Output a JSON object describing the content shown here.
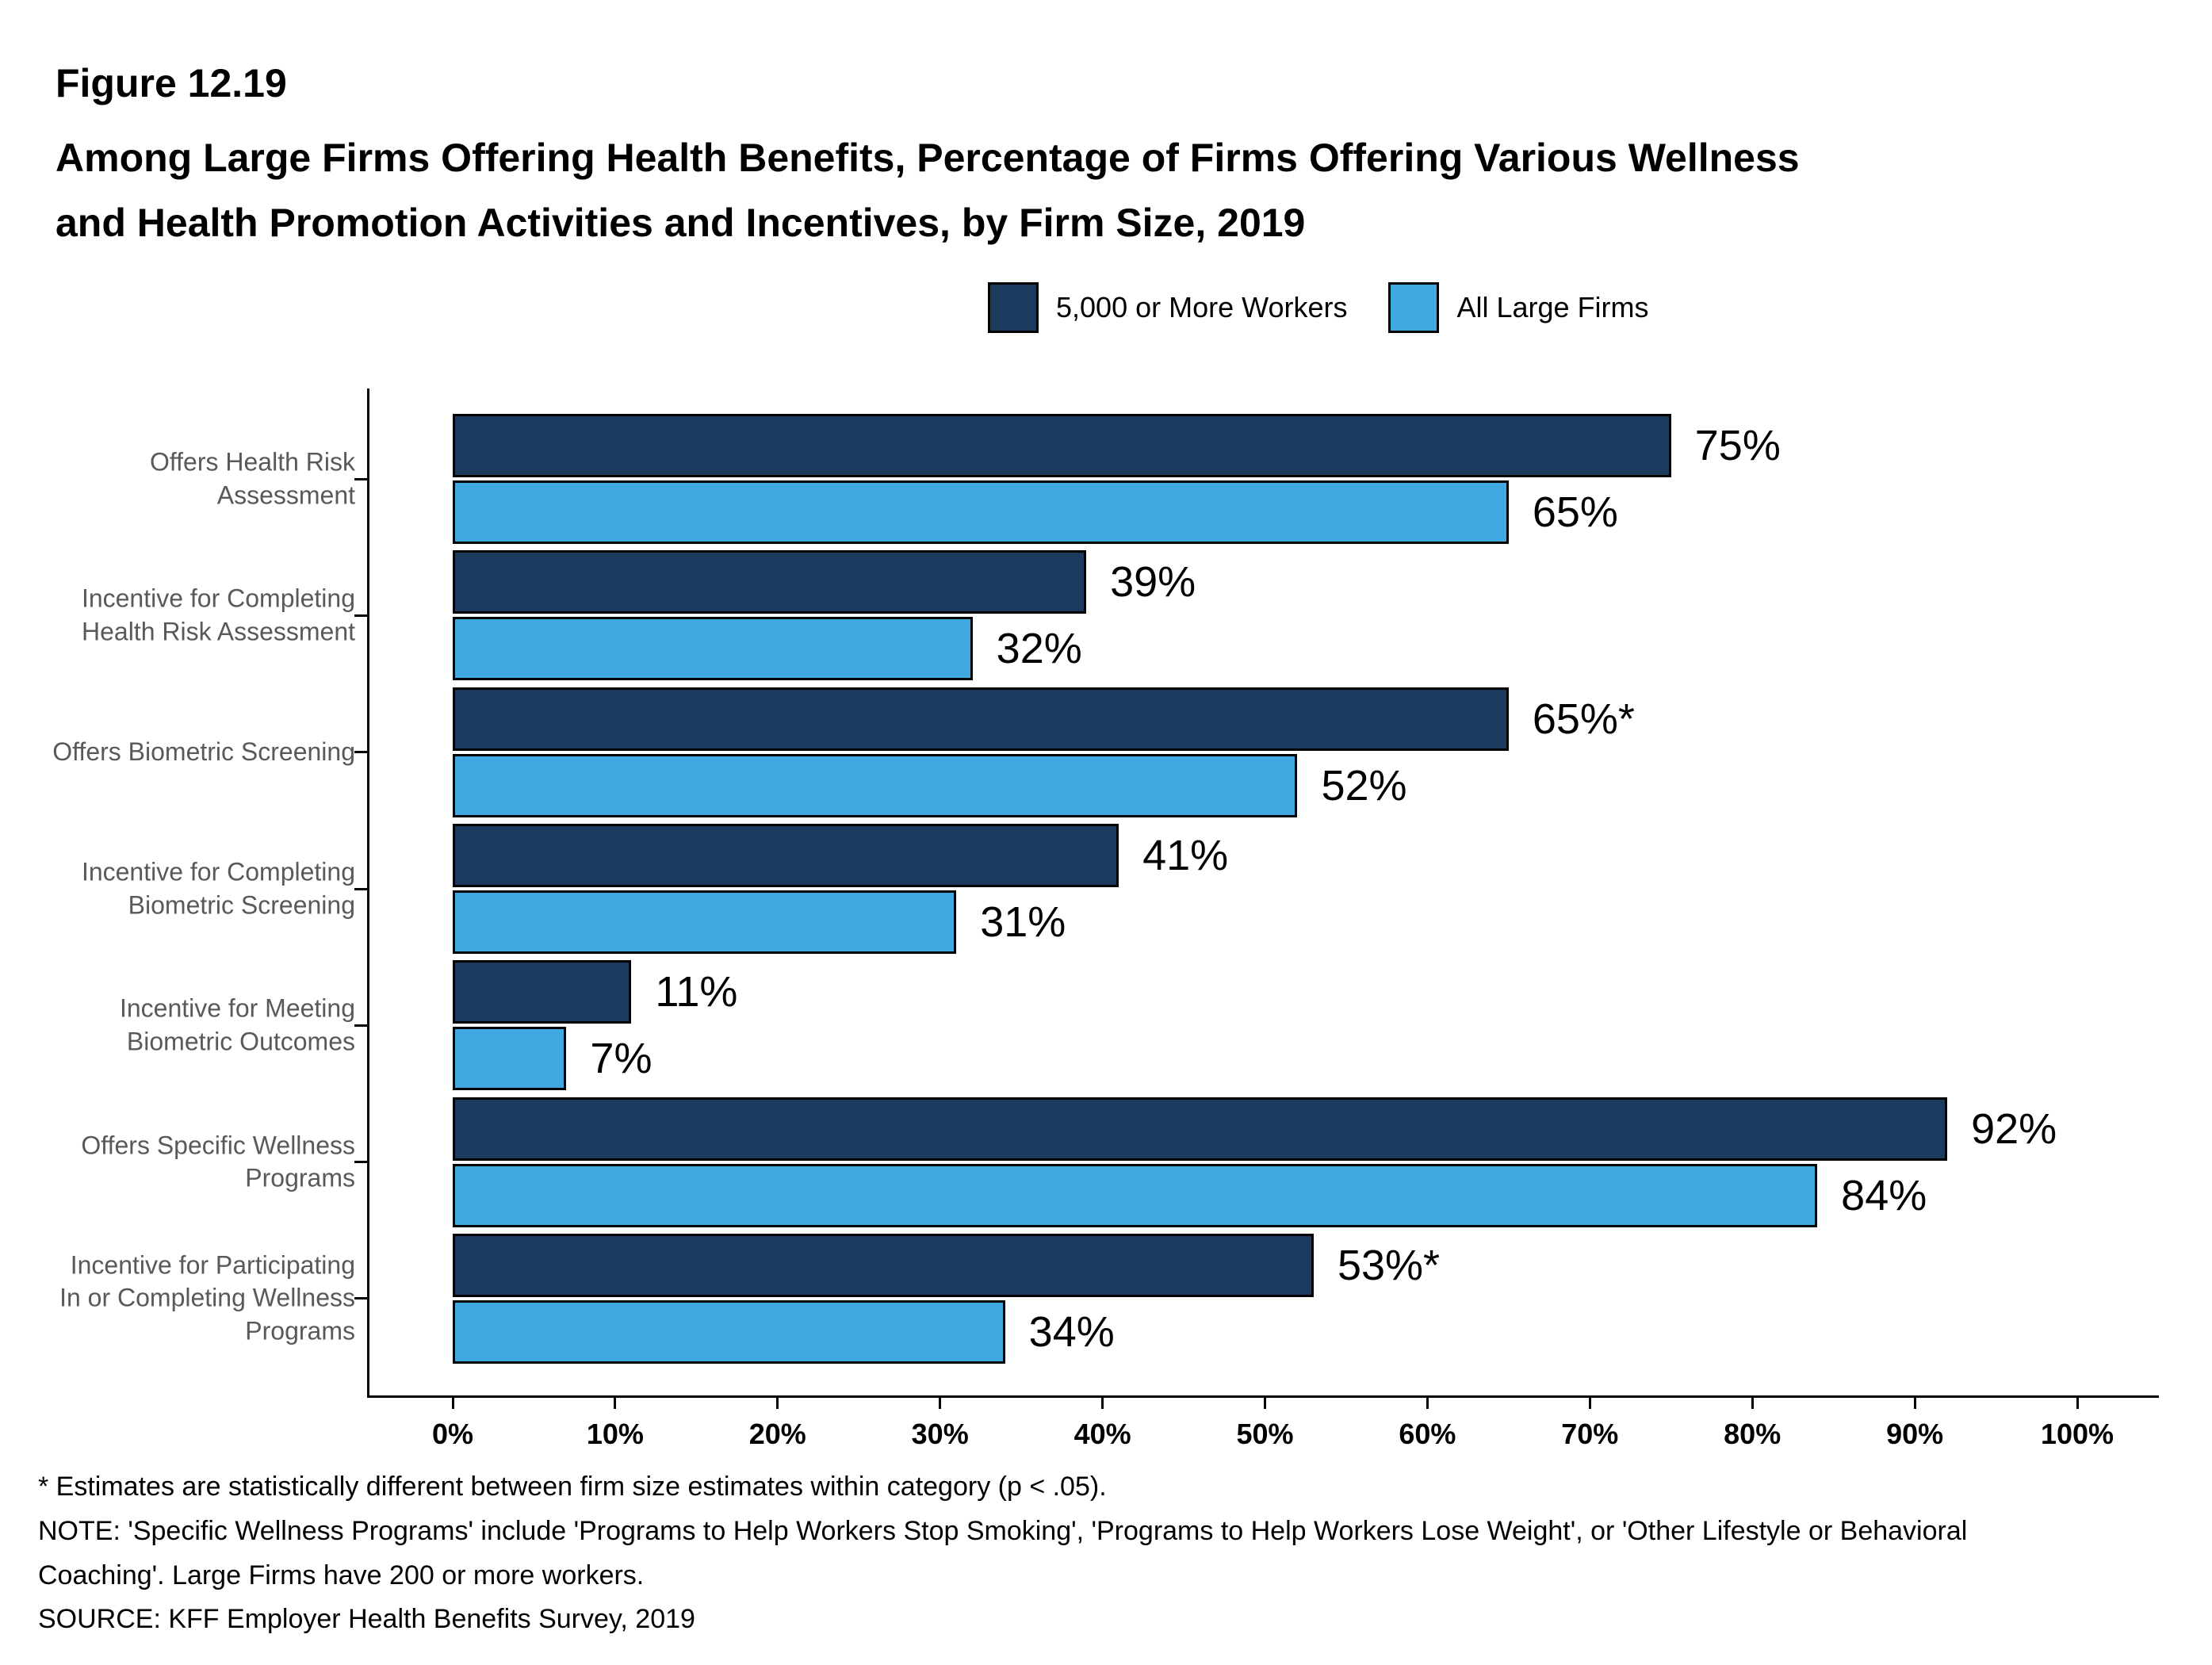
{
  "header": {
    "figure_label": "Figure 12.19",
    "title_lines": [
      "Among Large Firms Offering Health Benefits, Percentage of Firms Offering Various Wellness",
      "and Health Promotion Activities and Incentives, by Firm Size, 2019"
    ]
  },
  "chart_data": {
    "type": "bar",
    "orientation": "horizontal",
    "title": "Among Large Firms Offering Health Benefits, Percentage of Firms Offering Various Wellness and Health Promotion Activities and Incentives, by Firm Size, 2019",
    "categories": [
      {
        "label": "Offers Health Risk Assessment",
        "lines": [
          "Offers Health Risk",
          "Assessment"
        ]
      },
      {
        "label": "Incentive for Completing Health Risk Assessment",
        "lines": [
          "Incentive for Completing",
          "Health Risk Assessment"
        ]
      },
      {
        "label": "Offers Biometric Screening",
        "lines": [
          "Offers Biometric Screening"
        ]
      },
      {
        "label": "Incentive for Completing Biometric Screening",
        "lines": [
          "Incentive for Completing",
          "Biometric Screening"
        ]
      },
      {
        "label": "Incentive for Meeting Biometric Outcomes",
        "lines": [
          "Incentive for Meeting",
          "Biometric Outcomes"
        ]
      },
      {
        "label": "Offers Specific Wellness Programs",
        "lines": [
          "Offers Specific Wellness",
          "Programs"
        ]
      },
      {
        "label": "Incentive for Participating In or Completing Wellness Programs",
        "lines": [
          "Incentive for Participating",
          "In or Completing Wellness",
          "Programs"
        ]
      }
    ],
    "series": [
      {
        "name": "5,000 or More Workers",
        "color": "#1b3a5e",
        "values": [
          75,
          39,
          65,
          41,
          11,
          92,
          53
        ],
        "labels": [
          "75%",
          "39%",
          "65%*",
          "41%",
          "11%",
          "92%",
          "53%*"
        ]
      },
      {
        "name": "All Large Firms",
        "color": "#41a9e1",
        "values": [
          65,
          32,
          52,
          31,
          7,
          84,
          34
        ],
        "labels": [
          "65%",
          "32%",
          "52%",
          "31%",
          "7%",
          "84%",
          "34%"
        ]
      }
    ],
    "x_axis": {
      "min": 0,
      "max": 100,
      "step": 10,
      "tick_labels": [
        "0%",
        "10%",
        "20%",
        "30%",
        "40%",
        "50%",
        "60%",
        "70%",
        "80%",
        "90%",
        "100%"
      ]
    },
    "grid": false,
    "legend_position": "top"
  },
  "footnotes": {
    "star": "* Estimates are statistically different between firm size estimates within category (p < .05).",
    "note": "NOTE: 'Specific Wellness Programs' include 'Programs to Help Workers Stop Smoking', 'Programs to Help Workers Lose Weight', or 'Other Lifestyle or Behavioral Coaching'. Large Firms have 200 or more workers.",
    "source": "SOURCE: KFF Employer Health Benefits Survey, 2019"
  }
}
